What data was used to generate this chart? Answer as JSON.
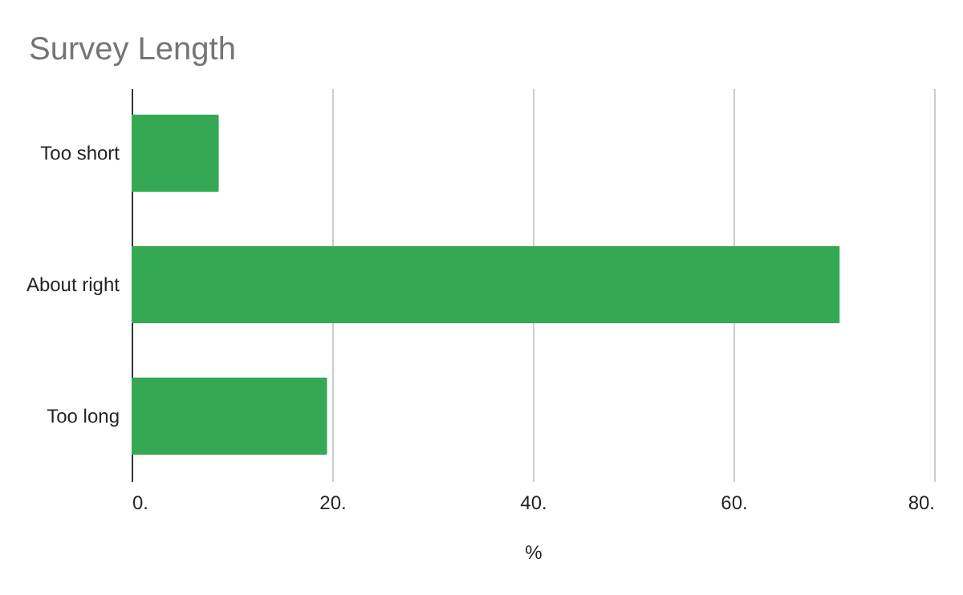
{
  "chart_data": {
    "type": "bar",
    "orientation": "horizontal",
    "title": "Survey Length",
    "xlabel": "%",
    "categories": [
      "Too short",
      "About right",
      "Too long"
    ],
    "values": [
      8.7,
      70.6,
      19.5
    ],
    "color": "#34a853",
    "xlim": [
      0,
      80
    ],
    "xticks": [
      {
        "value": 0,
        "label": "0."
      },
      {
        "value": 20,
        "label": "20."
      },
      {
        "value": 40,
        "label": "40."
      },
      {
        "value": 60,
        "label": "60."
      },
      {
        "value": 80,
        "label": "80."
      }
    ],
    "grid": "x"
  }
}
